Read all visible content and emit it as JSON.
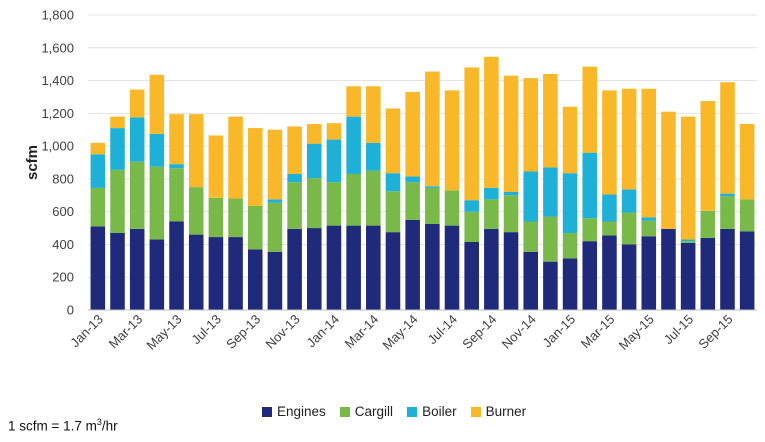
{
  "chart_data": {
    "type": "stacked_bar",
    "title": "",
    "xlabel": "",
    "ylabel": "scfm",
    "ylim": [
      0,
      1800
    ],
    "yticks": [
      "0",
      "200",
      "400",
      "600",
      "800",
      "1,000",
      "1,200",
      "1,400",
      "1,600",
      "1,800"
    ],
    "categories": [
      "Jan-13",
      "Feb-13",
      "Mar-13",
      "Apr-13",
      "May-13",
      "Jun-13",
      "Jul-13",
      "Aug-13",
      "Sep-13",
      "Oct-13",
      "Nov-13",
      "Dec-13",
      "Jan-14",
      "Feb-14",
      "Mar-14",
      "Apr-14",
      "May-14",
      "Jun-14",
      "Jul-14",
      "Aug-14",
      "Sep-14",
      "Oct-14",
      "Nov-14",
      "Dec-14",
      "Jan-15",
      "Feb-15",
      "Mar-15",
      "Apr-15",
      "May-15",
      "Jun-15",
      "Jul-15",
      "Aug-15",
      "Sep-15",
      "Oct-15"
    ],
    "xtick_labels": [
      "Jan-13",
      "Mar-13",
      "May-13",
      "Jul-13",
      "Sep-13",
      "Nov-13",
      "Jan-14",
      "Mar-14",
      "May-14",
      "Jul-14",
      "Sep-14",
      "Nov-14",
      "Jan-15",
      "Mar-15",
      "May-15",
      "Jul-15",
      "Sep-15"
    ],
    "series": [
      {
        "name": "Engines",
        "color": "#1f2a7a",
        "values": [
          510,
          470,
          495,
          430,
          540,
          460,
          445,
          445,
          370,
          355,
          495,
          500,
          515,
          515,
          515,
          475,
          550,
          525,
          515,
          415,
          495,
          475,
          355,
          295,
          315,
          420,
          455,
          400,
          450,
          495,
          410,
          440,
          495,
          480
        ]
      },
      {
        "name": "Cargill",
        "color": "#79b94a",
        "values": [
          235,
          385,
          410,
          445,
          325,
          290,
          240,
          235,
          265,
          300,
          285,
          305,
          265,
          315,
          335,
          250,
          230,
          220,
          215,
          185,
          180,
          225,
          185,
          275,
          155,
          140,
          85,
          195,
          95,
          0,
          10,
          165,
          200,
          195
        ]
      },
      {
        "name": "Boiler",
        "color": "#1fb0d8",
        "values": [
          205,
          255,
          270,
          200,
          25,
          0,
          0,
          0,
          0,
          20,
          50,
          210,
          260,
          350,
          170,
          110,
          35,
          10,
          0,
          70,
          70,
          20,
          305,
          300,
          365,
          400,
          165,
          140,
          20,
          0,
          10,
          0,
          15,
          0
        ]
      },
      {
        "name": "Burner",
        "color": "#f8b829",
        "values": [
          70,
          70,
          170,
          360,
          305,
          445,
          380,
          500,
          475,
          425,
          290,
          120,
          100,
          185,
          345,
          395,
          515,
          700,
          610,
          810,
          800,
          710,
          570,
          570,
          405,
          525,
          635,
          615,
          785,
          715,
          750,
          670,
          680,
          460
        ]
      }
    ],
    "legend_position": "bottom",
    "annotation": "1 scfm = 1.7 m³/hr",
    "note": {
      "main": "1 scfm = 1.7 m",
      "sup": "3",
      "tail": "/hr"
    }
  }
}
